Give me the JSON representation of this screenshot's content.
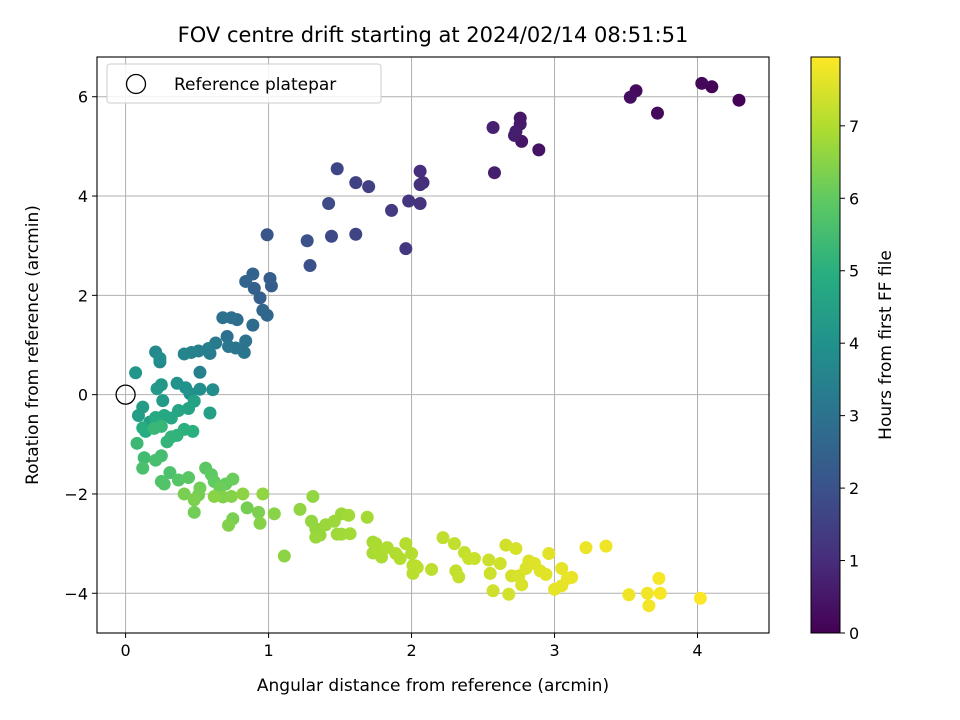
{
  "chart_data": {
    "type": "scatter",
    "title": "FOV centre drift starting at 2024/02/14 08:51:51",
    "xlabel": "Angular distance from reference (arcmin)",
    "ylabel": "Rotation from reference (arcmin)",
    "xlim": [
      -0.2,
      4.5
    ],
    "ylim": [
      -4.8,
      6.8
    ],
    "xticks": [
      0,
      1,
      2,
      3,
      4
    ],
    "yticks": [
      -4,
      -2,
      0,
      2,
      4,
      6
    ],
    "xtick_labels": [
      "0",
      "1",
      "2",
      "3",
      "4"
    ],
    "ytick_labels": [
      "−4",
      "−2",
      "0",
      "2",
      "4",
      "6"
    ],
    "grid": true,
    "legend": {
      "label": "Reference platepar",
      "position": "top-left"
    },
    "reference_point": {
      "x": 0,
      "y": 0
    },
    "colorbar": {
      "label": "Hours from first FF file",
      "range": [
        0,
        7.95
      ],
      "ticks": [
        0,
        1,
        2,
        3,
        4,
        5,
        6,
        7
      ],
      "tick_labels": [
        "0",
        "1",
        "2",
        "3",
        "4",
        "5",
        "6",
        "7"
      ],
      "colormap": "viridis"
    },
    "series": [
      {
        "points": [
          [
            4.29,
            5.93,
            0.05
          ],
          [
            4.1,
            6.2,
            0.1
          ],
          [
            4.03,
            6.27,
            0.15
          ],
          [
            3.72,
            5.67,
            0.2
          ],
          [
            3.57,
            6.12,
            0.25
          ],
          [
            3.53,
            5.99,
            0.3
          ],
          [
            2.89,
            4.93,
            0.4
          ],
          [
            2.77,
            5.1,
            0.45
          ],
          [
            2.76,
            5.57,
            0.5
          ],
          [
            2.76,
            5.45,
            0.55
          ],
          [
            2.73,
            5.3,
            0.6
          ],
          [
            2.72,
            5.22,
            0.65
          ],
          [
            2.58,
            4.47,
            0.7
          ],
          [
            2.57,
            5.38,
            0.75
          ],
          [
            2.08,
            4.27,
            1.0
          ],
          [
            2.06,
            4.5,
            1.05
          ],
          [
            2.06,
            4.23,
            1.1
          ],
          [
            2.06,
            3.85,
            1.15
          ],
          [
            1.98,
            3.9,
            1.2
          ],
          [
            1.96,
            2.94,
            1.3
          ],
          [
            1.86,
            3.71,
            1.35
          ],
          [
            1.7,
            4.19,
            1.5
          ],
          [
            1.61,
            4.27,
            1.55
          ],
          [
            1.61,
            3.23,
            1.6
          ],
          [
            1.48,
            4.55,
            1.7
          ],
          [
            1.44,
            3.19,
            1.75
          ],
          [
            1.42,
            3.85,
            1.8
          ],
          [
            1.29,
            2.6,
            1.95
          ],
          [
            1.27,
            3.1,
            2.0
          ],
          [
            0.99,
            3.22,
            2.1
          ],
          [
            1.02,
            2.19,
            2.3
          ],
          [
            1.01,
            2.34,
            2.35
          ],
          [
            0.94,
            1.95,
            2.4
          ],
          [
            0.9,
            2.14,
            2.45
          ],
          [
            0.89,
            2.43,
            2.5
          ],
          [
            0.84,
            2.28,
            2.55
          ],
          [
            0.96,
            1.7,
            2.6
          ],
          [
            0.99,
            1.6,
            2.65
          ],
          [
            0.89,
            1.4,
            2.75
          ],
          [
            0.78,
            1.51,
            2.8
          ],
          [
            0.74,
            1.55,
            2.85
          ],
          [
            0.71,
            1.17,
            2.9
          ],
          [
            0.68,
            1.55,
            2.95
          ],
          [
            0.84,
            1.08,
            3.0
          ],
          [
            0.83,
            0.85,
            3.05
          ],
          [
            0.77,
            0.94,
            3.1
          ],
          [
            0.72,
            0.97,
            3.15
          ],
          [
            0.63,
            1.04,
            3.25
          ],
          [
            0.59,
            0.83,
            3.3
          ],
          [
            0.58,
            0.93,
            3.35
          ],
          [
            0.51,
            0.88,
            3.4
          ],
          [
            0.52,
            0.45,
            3.45
          ],
          [
            0.46,
            0.85,
            3.5
          ],
          [
            0.41,
            0.82,
            3.55
          ],
          [
            0.21,
            0.86,
            3.7
          ],
          [
            0.24,
            0.66,
            3.75
          ],
          [
            0.24,
            0.73,
            3.8
          ],
          [
            0.61,
            0.1,
            3.85
          ],
          [
            0.52,
            0.11,
            3.9
          ],
          [
            0.45,
            0.02,
            3.95
          ],
          [
            0.42,
            0.14,
            4.0
          ],
          [
            0.36,
            0.23,
            4.05
          ],
          [
            0.07,
            0.44,
            4.15
          ],
          [
            0.25,
            0.2,
            4.2
          ],
          [
            0.22,
            0.12,
            4.25
          ],
          [
            0.26,
            -0.12,
            4.3
          ],
          [
            0.12,
            -0.25,
            4.35
          ],
          [
            0.09,
            -0.42,
            4.4
          ],
          [
            0.17,
            -0.55,
            4.45
          ],
          [
            0.59,
            -0.37,
            4.5
          ],
          [
            0.48,
            -0.13,
            4.55
          ],
          [
            0.44,
            -0.28,
            4.6
          ],
          [
            0.37,
            -0.32,
            4.65
          ],
          [
            0.32,
            -0.47,
            4.7
          ],
          [
            0.27,
            -0.42,
            4.75
          ],
          [
            0.21,
            -0.46,
            4.8
          ],
          [
            0.12,
            -0.67,
            4.85
          ],
          [
            0.14,
            -0.74,
            4.9
          ],
          [
            0.47,
            -0.74,
            5.0
          ],
          [
            0.41,
            -0.7,
            5.05
          ],
          [
            0.36,
            -0.82,
            5.1
          ],
          [
            0.32,
            -0.85,
            5.15
          ],
          [
            0.29,
            -0.95,
            5.2
          ],
          [
            0.25,
            -0.64,
            5.25
          ],
          [
            0.2,
            -0.68,
            5.3
          ],
          [
            0.08,
            -0.98,
            5.35
          ],
          [
            0.13,
            -1.27,
            5.45
          ],
          [
            0.25,
            -1.23,
            5.5
          ],
          [
            0.21,
            -1.32,
            5.55
          ],
          [
            0.12,
            -1.48,
            5.6
          ],
          [
            0.31,
            -1.57,
            5.65
          ],
          [
            0.25,
            -1.75,
            5.7
          ],
          [
            0.27,
            -1.8,
            5.75
          ],
          [
            0.37,
            -1.72,
            5.8
          ],
          [
            0.44,
            -1.67,
            5.85
          ],
          [
            0.56,
            -1.48,
            5.9
          ],
          [
            0.6,
            -1.61,
            5.95
          ],
          [
            0.62,
            -1.75,
            6.0
          ],
          [
            0.7,
            -1.8,
            6.05
          ],
          [
            0.75,
            -1.7,
            6.1
          ],
          [
            0.66,
            -1.88,
            6.15
          ],
          [
            0.52,
            -1.88,
            6.2
          ],
          [
            0.51,
            -2.02,
            6.25
          ],
          [
            0.41,
            -2.0,
            6.3
          ],
          [
            0.48,
            -2.12,
            6.35
          ],
          [
            0.68,
            -2.06,
            6.4
          ],
          [
            0.74,
            -2.05,
            6.45
          ],
          [
            0.62,
            -2.05,
            6.5
          ],
          [
            0.82,
            -2.0,
            6.55
          ],
          [
            0.96,
            -2.0,
            6.6
          ],
          [
            0.48,
            -2.37,
            6.2
          ],
          [
            0.85,
            -2.28,
            6.25
          ],
          [
            0.75,
            -2.5,
            6.3
          ],
          [
            0.93,
            -2.37,
            6.35
          ],
          [
            0.72,
            -2.63,
            6.4
          ],
          [
            0.94,
            -2.59,
            6.45
          ],
          [
            1.04,
            -2.4,
            6.5
          ],
          [
            1.11,
            -3.25,
            6.55
          ],
          [
            1.22,
            -2.31,
            6.6
          ],
          [
            1.31,
            -2.05,
            6.62
          ],
          [
            1.3,
            -2.55,
            6.64
          ],
          [
            1.33,
            -2.7,
            6.66
          ],
          [
            1.36,
            -2.83,
            6.68
          ],
          [
            1.33,
            -2.87,
            6.7
          ],
          [
            1.4,
            -2.62,
            6.72
          ],
          [
            1.46,
            -2.55,
            6.74
          ],
          [
            1.51,
            -2.4,
            6.76
          ],
          [
            1.48,
            -2.81,
            6.78
          ],
          [
            1.51,
            -2.81,
            6.8
          ],
          [
            1.56,
            -2.43,
            6.82
          ],
          [
            1.57,
            -2.8,
            6.84
          ],
          [
            1.69,
            -2.47,
            6.86
          ],
          [
            1.73,
            -2.97,
            6.88
          ],
          [
            1.73,
            -3.19,
            6.9
          ],
          [
            1.75,
            -3.0,
            6.92
          ],
          [
            1.79,
            -3.27,
            6.94
          ],
          [
            1.76,
            -3.09,
            6.96
          ],
          [
            1.83,
            -3.08,
            6.98
          ],
          [
            1.89,
            -3.2,
            7.0
          ],
          [
            1.92,
            -3.3,
            7.02
          ],
          [
            1.96,
            -3.0,
            7.04
          ],
          [
            2.0,
            -3.2,
            7.06
          ],
          [
            2.01,
            -3.44,
            7.08
          ],
          [
            2.01,
            -3.6,
            7.1
          ],
          [
            2.03,
            -3.45,
            7.12
          ],
          [
            2.04,
            -3.48,
            7.14
          ],
          [
            2.14,
            -3.52,
            7.16
          ],
          [
            2.22,
            -2.88,
            7.18
          ],
          [
            2.3,
            -3.0,
            7.2
          ],
          [
            2.31,
            -3.55,
            7.22
          ],
          [
            2.33,
            -3.67,
            7.24
          ],
          [
            2.37,
            -3.18,
            7.26
          ],
          [
            2.4,
            -3.3,
            7.28
          ],
          [
            2.44,
            -3.3,
            7.3
          ],
          [
            2.54,
            -3.33,
            7.32
          ],
          [
            2.55,
            -3.6,
            7.34
          ],
          [
            2.57,
            -3.95,
            7.36
          ],
          [
            2.62,
            -3.4,
            7.38
          ],
          [
            2.66,
            -3.03,
            7.4
          ],
          [
            2.68,
            -4.02,
            7.42
          ],
          [
            2.7,
            -3.65,
            7.44
          ],
          [
            2.73,
            -3.1,
            7.46
          ],
          [
            2.75,
            -3.65,
            7.48
          ],
          [
            2.77,
            -3.83,
            7.5
          ],
          [
            2.8,
            -3.5,
            7.52
          ],
          [
            2.82,
            -3.35,
            7.54
          ],
          [
            2.86,
            -3.4,
            7.56
          ],
          [
            2.9,
            -3.55,
            7.58
          ],
          [
            2.94,
            -3.62,
            7.6
          ],
          [
            2.96,
            -3.2,
            7.62
          ],
          [
            3.0,
            -3.92,
            7.64
          ],
          [
            3.05,
            -3.5,
            7.66
          ],
          [
            3.05,
            -3.85,
            7.68
          ],
          [
            3.09,
            -3.7,
            7.7
          ],
          [
            3.12,
            -3.68,
            7.72
          ],
          [
            3.22,
            -3.08,
            7.74
          ],
          [
            3.36,
            -3.05,
            7.76
          ],
          [
            3.52,
            -4.03,
            7.78
          ],
          [
            3.65,
            -4.0,
            7.8
          ],
          [
            3.66,
            -4.25,
            7.82
          ],
          [
            3.73,
            -3.7,
            7.85
          ],
          [
            3.74,
            -4.0,
            7.88
          ],
          [
            4.02,
            -4.1,
            7.92
          ]
        ]
      }
    ]
  }
}
